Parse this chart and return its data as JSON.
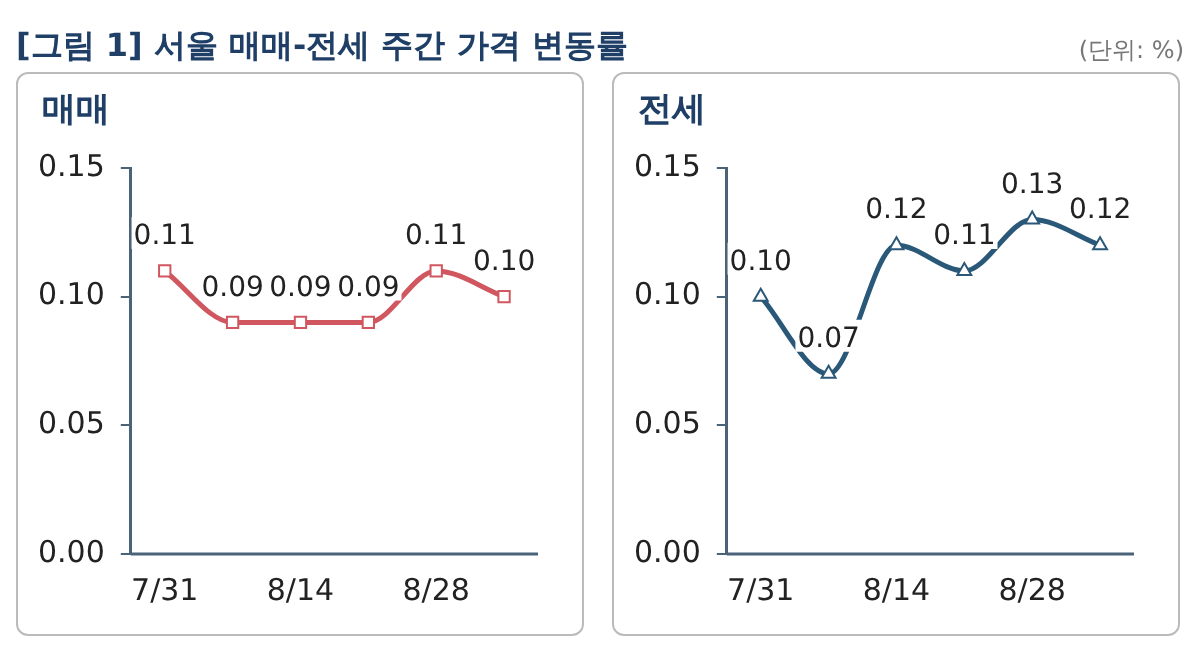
{
  "chart_data": [
    {
      "type": "line",
      "title": "매매",
      "annotations": [
        "[그림 1] 서울 매매-전세 주간 가격 변동률"
      ],
      "categories": [
        "7/31",
        null,
        "8/14",
        null,
        "8/28",
        null
      ],
      "series": [
        {
          "color": "#d0575f",
          "values": [
            0.11,
            0.09,
            0.09,
            0.09,
            0.11,
            0.1
          ],
          "value_labels": [
            "0.11",
            "0.09",
            "0.09",
            "0.09",
            "0.11",
            "0.10"
          ]
        }
      ],
      "ylim": [
        0,
        0.15
      ],
      "yticks": [
        {
          "value": 0,
          "label": "0.00"
        },
        {
          "value": 0.05,
          "label": "0.05"
        },
        {
          "value": 0.1,
          "label": "0.10"
        },
        {
          "value": 0.15,
          "label": "0.15"
        }
      ],
      "marker": "square"
    },
    {
      "type": "line",
      "title": "전세",
      "annotations": [
        "(단위: %)"
      ],
      "categories": [
        "7/31",
        null,
        "8/14",
        null,
        "8/28",
        null
      ],
      "series": [
        {
          "color": "#2a5878",
          "values": [
            0.1,
            0.07,
            0.12,
            0.11,
            0.13,
            0.12
          ],
          "value_labels": [
            "0.10",
            "0.07",
            "0.12",
            "0.11",
            "0.13",
            "0.12"
          ]
        }
      ],
      "ylim": [
        0,
        0.15
      ],
      "yticks": [
        {
          "value": 0,
          "label": "0.00"
        },
        {
          "value": 0.05,
          "label": "0.05"
        },
        {
          "value": 0.1,
          "label": "0.10"
        },
        {
          "value": 0.15,
          "label": "0.15"
        }
      ],
      "marker": "triangle"
    }
  ]
}
